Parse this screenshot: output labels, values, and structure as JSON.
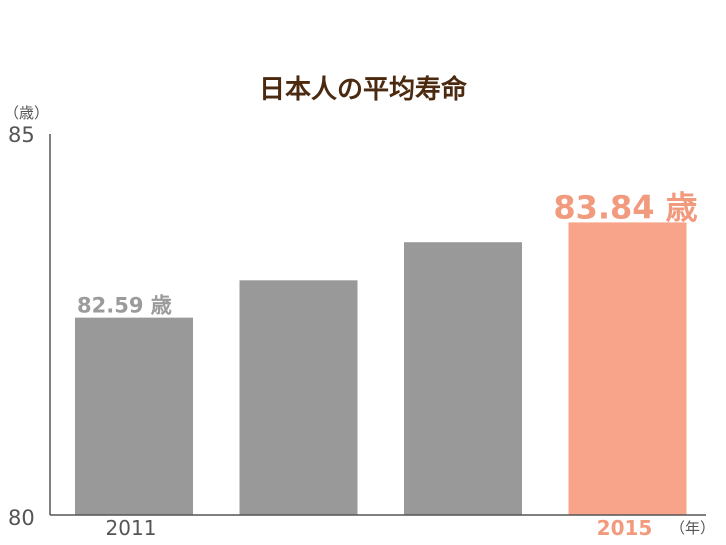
{
  "chart_data": {
    "type": "bar",
    "title": "日本人の平均寿命",
    "y_unit": "（歳）",
    "x_unit": "（年）",
    "ylim": [
      80,
      85
    ],
    "y_ticks": [
      "85",
      "80"
    ],
    "grid": false,
    "categories": [
      "2011",
      "",
      "",
      "2015"
    ],
    "values": [
      82.59,
      83.08,
      83.58,
      83.84
    ],
    "data_labels": [
      "82.59 歳",
      "",
      "",
      "83.84 歳"
    ],
    "colors": [
      "#999999",
      "#999999",
      "#999999",
      "#f8a48a"
    ],
    "title_color": "#4b2a10",
    "axis_color": "#555555",
    "highlight_color": "#f8a48a",
    "highlight_label_color": "#f29a7e",
    "base_label_color": "#9b9b9b"
  }
}
